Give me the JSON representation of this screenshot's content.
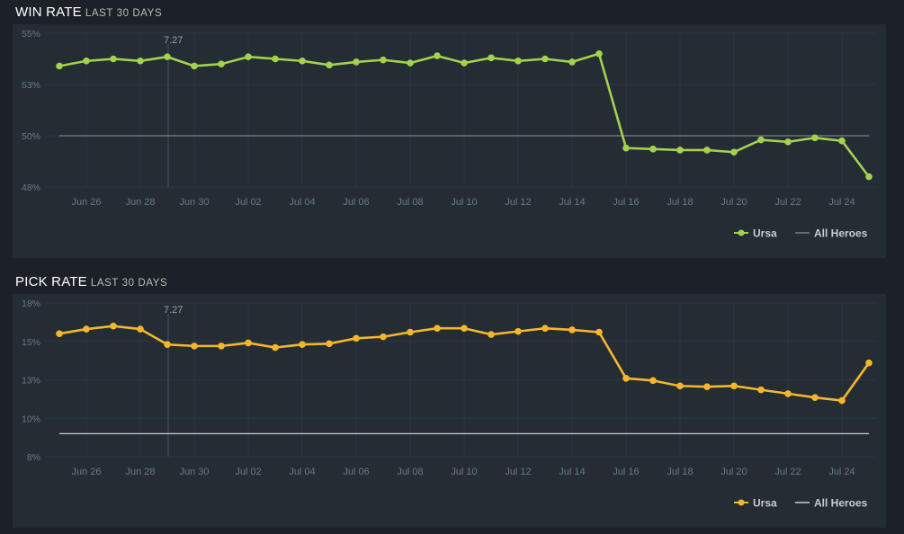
{
  "charts": [
    {
      "title": "WIN RATE",
      "subtitle": "LAST 30 DAYS"
    },
    {
      "title": "PICK RATE",
      "subtitle": "LAST 30 DAYS"
    }
  ],
  "chart_data": [
    {
      "type": "line",
      "title": "WIN RATE",
      "subtitle": "LAST 30 DAYS",
      "y_ticks": [
        "55%",
        "53%",
        "50%",
        "48%"
      ],
      "y_tick_values": [
        55,
        52.5,
        50,
        47.5
      ],
      "ylim": [
        47.5,
        55
      ],
      "x_ticks": [
        "Jun 26",
        "Jun 28",
        "Jun 30",
        "Jul 02",
        "Jul 04",
        "Jul 06",
        "Jul 08",
        "Jul 10",
        "Jul 12",
        "Jul 14",
        "Jul 16",
        "Jul 18",
        "Jul 20",
        "Jul 22",
        "Jul 24"
      ],
      "x_dates": [
        "Jun 25",
        "Jun 26",
        "Jun 27",
        "Jun 28",
        "Jun 29",
        "Jun 30",
        "Jul 01",
        "Jul 02",
        "Jul 03",
        "Jul 04",
        "Jul 05",
        "Jul 06",
        "Jul 07",
        "Jul 08",
        "Jul 09",
        "Jul 10",
        "Jul 11",
        "Jul 12",
        "Jul 13",
        "Jul 14",
        "Jul 15",
        "Jul 16",
        "Jul 17",
        "Jul 18",
        "Jul 19",
        "Jul 20",
        "Jul 21",
        "Jul 22",
        "Jul 23",
        "Jul 24",
        "Jul 25"
      ],
      "patch_marker": {
        "label": "7.27",
        "date": "Jun 29"
      },
      "grid": true,
      "legend_position": "bottom-right",
      "series": [
        {
          "name": "Ursa",
          "color": "#a3d24f",
          "values": [
            53.4,
            53.65,
            53.75,
            53.65,
            53.85,
            53.4,
            53.5,
            53.85,
            53.75,
            53.65,
            53.45,
            53.6,
            53.7,
            53.55,
            53.9,
            53.55,
            53.8,
            53.65,
            53.75,
            53.6,
            54.0,
            49.4,
            49.35,
            49.3,
            49.3,
            49.2,
            49.8,
            49.7,
            49.9,
            49.75,
            48.0
          ]
        },
        {
          "name": "All Heroes",
          "color": "#7a8288",
          "values": [
            50,
            50,
            50,
            50,
            50,
            50,
            50,
            50,
            50,
            50,
            50,
            50,
            50,
            50,
            50,
            50,
            50,
            50,
            50,
            50,
            50,
            50,
            50,
            50,
            50,
            50,
            50,
            50,
            50,
            50,
            50
          ]
        }
      ]
    },
    {
      "type": "line",
      "title": "PICK RATE",
      "subtitle": "LAST 30 DAYS",
      "y_ticks": [
        "18%",
        "15%",
        "13%",
        "10%",
        "8%"
      ],
      "y_tick_values": [
        17.5,
        15,
        12.5,
        10,
        7.5
      ],
      "ylim": [
        7.5,
        17.5
      ],
      "x_ticks": [
        "Jun 26",
        "Jun 28",
        "Jun 30",
        "Jul 02",
        "Jul 04",
        "Jul 06",
        "Jul 08",
        "Jul 10",
        "Jul 12",
        "Jul 14",
        "Jul 16",
        "Jul 18",
        "Jul 20",
        "Jul 22",
        "Jul 24"
      ],
      "x_dates": [
        "Jun 25",
        "Jun 26",
        "Jun 27",
        "Jun 28",
        "Jun 29",
        "Jun 30",
        "Jul 01",
        "Jul 02",
        "Jul 03",
        "Jul 04",
        "Jul 05",
        "Jul 06",
        "Jul 07",
        "Jul 08",
        "Jul 09",
        "Jul 10",
        "Jul 11",
        "Jul 12",
        "Jul 13",
        "Jul 14",
        "Jul 15",
        "Jul 16",
        "Jul 17",
        "Jul 18",
        "Jul 19",
        "Jul 20",
        "Jul 21",
        "Jul 22",
        "Jul 23",
        "Jul 24",
        "Jul 25"
      ],
      "patch_marker": {
        "label": "7.27",
        "date": "Jun 29"
      },
      "grid": true,
      "legend_position": "bottom-right",
      "series": [
        {
          "name": "Ursa",
          "color": "#f4b72b",
          "values": [
            15.5,
            15.8,
            16.0,
            15.8,
            14.8,
            14.7,
            14.7,
            14.9,
            14.6,
            14.8,
            14.85,
            15.2,
            15.3,
            15.6,
            15.85,
            15.85,
            15.45,
            15.65,
            15.85,
            15.75,
            15.6,
            12.6,
            12.45,
            12.1,
            12.05,
            12.1,
            11.85,
            11.6,
            11.35,
            11.15,
            13.6
          ]
        },
        {
          "name": "All Heroes",
          "color": "#c9ced2",
          "values": [
            9,
            9,
            9,
            9,
            9,
            9,
            9,
            9,
            9,
            9,
            9,
            9,
            9,
            9,
            9,
            9,
            9,
            9,
            9,
            9,
            9,
            9,
            9,
            9,
            9,
            9,
            9,
            9,
            9,
            9,
            9
          ]
        }
      ]
    }
  ]
}
